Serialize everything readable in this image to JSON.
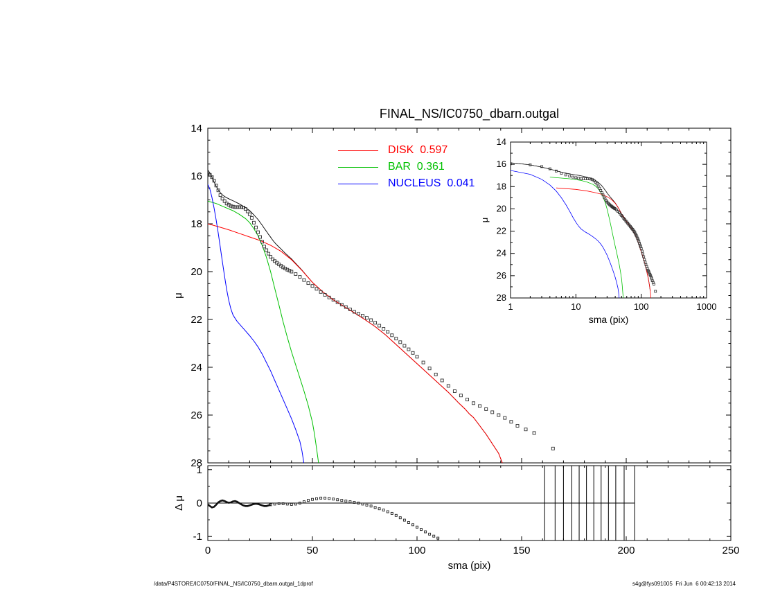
{
  "title": "FINAL_NS/IC0750_dbarn.outgal",
  "footer": {
    "left": "/data/P4STORE/IC0750/FINAL_NS/IC0750_dbarn.outgal_1dprof",
    "right": "s4g@fys091005  Fri Jun  6 00:42:13 2014"
  },
  "legend": {
    "items": [
      {
        "label": "DISK  0.597",
        "color": "#ff0000"
      },
      {
        "label": "BAR  0.361",
        "color": "#00c000"
      },
      {
        "label": "NUCLEUS  0.041",
        "color": "#0000ff"
      }
    ]
  },
  "chart_data": [
    {
      "id": "main",
      "type": "scatter",
      "xlim": [
        0,
        250
      ],
      "ylim": [
        28,
        14
      ],
      "ylabel": "μ",
      "yticks": [
        14,
        16,
        18,
        20,
        22,
        24,
        26,
        28
      ],
      "xticks_major": [
        0,
        50,
        100,
        150,
        200,
        250
      ],
      "x_tick_labels_shown": false,
      "grid": false,
      "series": [
        {
          "name": "galaxy",
          "style": "squares",
          "color": "#2f2f2f",
          "points": [
            [
              0,
              15.9
            ],
            [
              1,
              15.95
            ],
            [
              2,
              16.05
            ],
            [
              3,
              16.2
            ],
            [
              4,
              16.4
            ],
            [
              5,
              16.6
            ],
            [
              6,
              16.8
            ],
            [
              7,
              16.95
            ],
            [
              8,
              17.05
            ],
            [
              9,
              17.15
            ],
            [
              10,
              17.2
            ],
            [
              11,
              17.25
            ],
            [
              12,
              17.28
            ],
            [
              13,
              17.3
            ],
            [
              14,
              17.3
            ],
            [
              15,
              17.3
            ],
            [
              16,
              17.3
            ],
            [
              17,
              17.32
            ],
            [
              18,
              17.38
            ],
            [
              19,
              17.48
            ],
            [
              20,
              17.6
            ],
            [
              21,
              17.75
            ],
            [
              22,
              17.95
            ],
            [
              23,
              18.15
            ],
            [
              24,
              18.35
            ],
            [
              25,
              18.55
            ],
            [
              26,
              18.75
            ],
            [
              27,
              18.95
            ],
            [
              28,
              19.1
            ],
            [
              29,
              19.25
            ],
            [
              30,
              19.38
            ],
            [
              31,
              19.48
            ],
            [
              32,
              19.56
            ],
            [
              33,
              19.63
            ],
            [
              34,
              19.7
            ],
            [
              35,
              19.76
            ],
            [
              36,
              19.82
            ],
            [
              37,
              19.87
            ],
            [
              38,
              19.92
            ],
            [
              39,
              19.96
            ],
            [
              40,
              20.0
            ],
            [
              42,
              20.1
            ],
            [
              44,
              20.22
            ],
            [
              46,
              20.35
            ],
            [
              48,
              20.48
            ],
            [
              50,
              20.6
            ],
            [
              52,
              20.72
            ],
            [
              54,
              20.85
            ],
            [
              56,
              20.97
            ],
            [
              58,
              21.08
            ],
            [
              60,
              21.18
            ],
            [
              62,
              21.28
            ],
            [
              64,
              21.38
            ],
            [
              66,
              21.48
            ],
            [
              68,
              21.58
            ],
            [
              70,
              21.68
            ],
            [
              72,
              21.76
            ],
            [
              74,
              21.84
            ],
            [
              76,
              21.93
            ],
            [
              78,
              22.03
            ],
            [
              80,
              22.14
            ],
            [
              82,
              22.26
            ],
            [
              84,
              22.39
            ],
            [
              86,
              22.52
            ],
            [
              88,
              22.66
            ],
            [
              90,
              22.8
            ],
            [
              92,
              22.95
            ],
            [
              94,
              23.1
            ],
            [
              96,
              23.25
            ],
            [
              98,
              23.4
            ],
            [
              100,
              23.56
            ],
            [
              103,
              23.8
            ],
            [
              106,
              24.05
            ],
            [
              109,
              24.3
            ],
            [
              112,
              24.55
            ],
            [
              115,
              24.78
            ],
            [
              118,
              25.0
            ],
            [
              121,
              25.18
            ],
            [
              124,
              25.35
            ],
            [
              127,
              25.5
            ],
            [
              130,
              25.62
            ],
            [
              133,
              25.75
            ],
            [
              136,
              25.88
            ],
            [
              139,
              26.0
            ],
            [
              142,
              26.12
            ],
            [
              145,
              26.28
            ],
            [
              148,
              26.45
            ],
            [
              152,
              26.6
            ],
            [
              156,
              26.75
            ],
            [
              165,
              27.4
            ]
          ]
        },
        {
          "name": "disk",
          "style": "line",
          "color": "#ff0000",
          "points": [
            [
              0,
              18.0
            ],
            [
              5,
              18.12
            ],
            [
              10,
              18.25
            ],
            [
              15,
              18.4
            ],
            [
              20,
              18.55
            ],
            [
              25,
              18.7
            ],
            [
              30,
              18.9
            ],
            [
              35,
              19.15
            ],
            [
              40,
              19.5
            ],
            [
              45,
              19.95
            ],
            [
              50,
              20.45
            ],
            [
              55,
              20.85
            ],
            [
              60,
              21.18
            ],
            [
              65,
              21.45
            ],
            [
              70,
              21.72
            ],
            [
              75,
              22.0
            ],
            [
              80,
              22.3
            ],
            [
              85,
              22.65
            ],
            [
              90,
              23.05
            ],
            [
              95,
              23.45
            ],
            [
              100,
              23.85
            ],
            [
              105,
              24.25
            ],
            [
              110,
              24.65
            ],
            [
              115,
              25.05
            ],
            [
              120,
              25.5
            ],
            [
              123,
              25.75
            ],
            [
              125,
              25.95
            ],
            [
              127,
              26.1
            ],
            [
              130,
              26.45
            ],
            [
              133,
              26.8
            ],
            [
              136,
              27.2
            ],
            [
              139,
              27.6
            ],
            [
              141,
              28.05
            ]
          ]
        },
        {
          "name": "bar",
          "style": "line",
          "color": "#00c000",
          "points": [
            [
              0,
              17.05
            ],
            [
              4,
              17.15
            ],
            [
              8,
              17.3
            ],
            [
              12,
              17.45
            ],
            [
              15,
              17.6
            ],
            [
              18,
              17.78
            ],
            [
              20,
              17.95
            ],
            [
              22,
              18.2
            ],
            [
              24,
              18.5
            ],
            [
              26,
              18.9
            ],
            [
              28,
              19.4
            ],
            [
              30,
              20.0
            ],
            [
              32,
              20.7
            ],
            [
              34,
              21.4
            ],
            [
              36,
              22.1
            ],
            [
              38,
              22.75
            ],
            [
              40,
              23.35
            ],
            [
              42,
              23.9
            ],
            [
              44,
              24.45
            ],
            [
              46,
              25.0
            ],
            [
              48,
              25.6
            ],
            [
              50,
              26.3
            ],
            [
              51,
              26.8
            ],
            [
              52,
              27.4
            ],
            [
              53,
              28.05
            ]
          ]
        },
        {
          "name": "nucleus",
          "style": "line",
          "color": "#0000ff",
          "points": [
            [
              0,
              16.35
            ],
            [
              1,
              16.55
            ],
            [
              2,
              16.9
            ],
            [
              3,
              17.35
            ],
            [
              4,
              17.85
            ],
            [
              5,
              18.4
            ],
            [
              6,
              19.0
            ],
            [
              7,
              19.6
            ],
            [
              8,
              20.2
            ],
            [
              9,
              20.75
            ],
            [
              10,
              21.2
            ],
            [
              11,
              21.55
            ],
            [
              12,
              21.8
            ],
            [
              13,
              21.95
            ],
            [
              14,
              22.08
            ],
            [
              15,
              22.18
            ],
            [
              16,
              22.28
            ],
            [
              17,
              22.38
            ],
            [
              18,
              22.48
            ],
            [
              20,
              22.68
            ],
            [
              22,
              22.9
            ],
            [
              24,
              23.15
            ],
            [
              26,
              23.45
            ],
            [
              28,
              23.8
            ],
            [
              30,
              24.15
            ],
            [
              32,
              24.55
            ],
            [
              34,
              24.95
            ],
            [
              36,
              25.35
            ],
            [
              38,
              25.75
            ],
            [
              40,
              26.15
            ],
            [
              42,
              26.6
            ],
            [
              44,
              27.1
            ],
            [
              45,
              27.5
            ],
            [
              46,
              28.05
            ]
          ]
        }
      ]
    },
    {
      "id": "inset",
      "type": "line",
      "xscale": "log",
      "xlim": [
        1,
        1000
      ],
      "xticks": [
        1,
        10,
        100,
        1000
      ],
      "xlabel": "sma (pix)",
      "ylabel": "μ",
      "ylim": [
        28,
        14
      ],
      "yticks": [
        14,
        16,
        18,
        20,
        22,
        24,
        26,
        28
      ],
      "series_from": "main"
    },
    {
      "id": "residual",
      "type": "scatter",
      "xlim": [
        0,
        250
      ],
      "xticks": [
        0,
        50,
        100,
        150,
        200,
        250
      ],
      "xlabel": "sma (pix)",
      "ylabel": "Δ μ",
      "ylim": [
        -1.12,
        1.12
      ],
      "yticks": [
        -1,
        0,
        1
      ],
      "zero_line_end": 204,
      "vlines": [
        161,
        166,
        170,
        174,
        177.5,
        181,
        184.5,
        188,
        191.5,
        195,
        199,
        204
      ],
      "series": [
        {
          "name": "residual",
          "style": "squares-line",
          "color": "#222222",
          "points": [
            [
              0,
              -0.04
            ],
            [
              1,
              -0.09
            ],
            [
              2,
              -0.13
            ],
            [
              3,
              -0.11
            ],
            [
              4,
              -0.05
            ],
            [
              5,
              0.02
            ],
            [
              6,
              0.06
            ],
            [
              7,
              0.08
            ],
            [
              8,
              0.06
            ],
            [
              9,
              0.03
            ],
            [
              10,
              0.01
            ],
            [
              11,
              0.02
            ],
            [
              12,
              0.05
            ],
            [
              13,
              0.06
            ],
            [
              14,
              0.04
            ],
            [
              15,
              0.0
            ],
            [
              16,
              -0.04
            ],
            [
              17,
              -0.07
            ],
            [
              18,
              -0.09
            ],
            [
              19,
              -0.09
            ],
            [
              20,
              -0.07
            ],
            [
              21,
              -0.05
            ],
            [
              22,
              -0.03
            ],
            [
              23,
              -0.02
            ],
            [
              24,
              -0.03
            ],
            [
              25,
              -0.05
            ],
            [
              26,
              -0.07
            ],
            [
              27,
              -0.09
            ],
            [
              28,
              -0.09
            ],
            [
              29,
              -0.07
            ],
            [
              30,
              -0.05
            ],
            [
              32,
              -0.03
            ],
            [
              34,
              -0.02
            ],
            [
              36,
              -0.02
            ],
            [
              38,
              -0.03
            ],
            [
              40,
              -0.04
            ],
            [
              42,
              -0.03
            ],
            [
              44,
              0.0
            ],
            [
              46,
              0.04
            ],
            [
              48,
              0.08
            ],
            [
              50,
              0.11
            ],
            [
              52,
              0.13
            ],
            [
              54,
              0.15
            ],
            [
              56,
              0.15
            ],
            [
              58,
              0.14
            ],
            [
              60,
              0.12
            ],
            [
              62,
              0.1
            ],
            [
              64,
              0.08
            ],
            [
              66,
              0.06
            ],
            [
              68,
              0.04
            ],
            [
              70,
              0.02
            ],
            [
              72,
              0.0
            ],
            [
              74,
              -0.03
            ],
            [
              76,
              -0.06
            ],
            [
              78,
              -0.09
            ],
            [
              80,
              -0.13
            ],
            [
              82,
              -0.17
            ],
            [
              84,
              -0.21
            ],
            [
              86,
              -0.26
            ],
            [
              88,
              -0.31
            ],
            [
              90,
              -0.37
            ],
            [
              92,
              -0.44
            ],
            [
              94,
              -0.51
            ],
            [
              96,
              -0.58
            ],
            [
              98,
              -0.65
            ],
            [
              100,
              -0.72
            ],
            [
              102,
              -0.79
            ],
            [
              104,
              -0.86
            ],
            [
              106,
              -0.93
            ],
            [
              108,
              -0.99
            ],
            [
              110,
              -1.05
            ]
          ]
        }
      ]
    }
  ]
}
